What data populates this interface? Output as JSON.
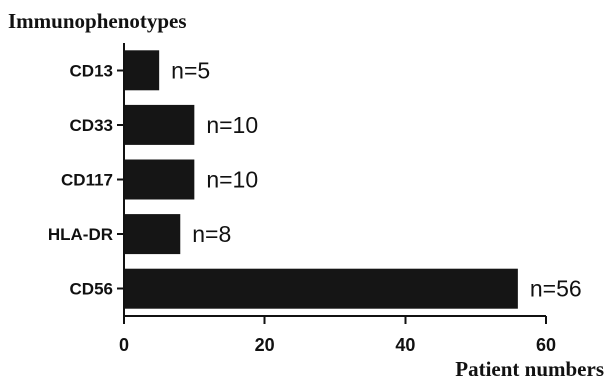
{
  "chart_data": {
    "type": "bar",
    "orientation": "horizontal",
    "title": "Immunophenotypes",
    "xlabel": "Patient numbers",
    "ylabel": "Immunophenotypes",
    "categories": [
      "CD13",
      "CD33",
      "CD117",
      "HLA-DR",
      "CD56"
    ],
    "values": [
      5,
      10,
      10,
      8,
      56
    ],
    "data_labels": [
      "n=5",
      "n=10",
      "n=10",
      "n=8",
      "n=56"
    ],
    "xlim": [
      0,
      60
    ],
    "x_ticks": [
      0,
      20,
      40,
      60
    ],
    "x_tick_labels": [
      "0",
      "20",
      "40",
      "60"
    ],
    "grid": false,
    "legend": "none",
    "bar_color": "#151515"
  }
}
